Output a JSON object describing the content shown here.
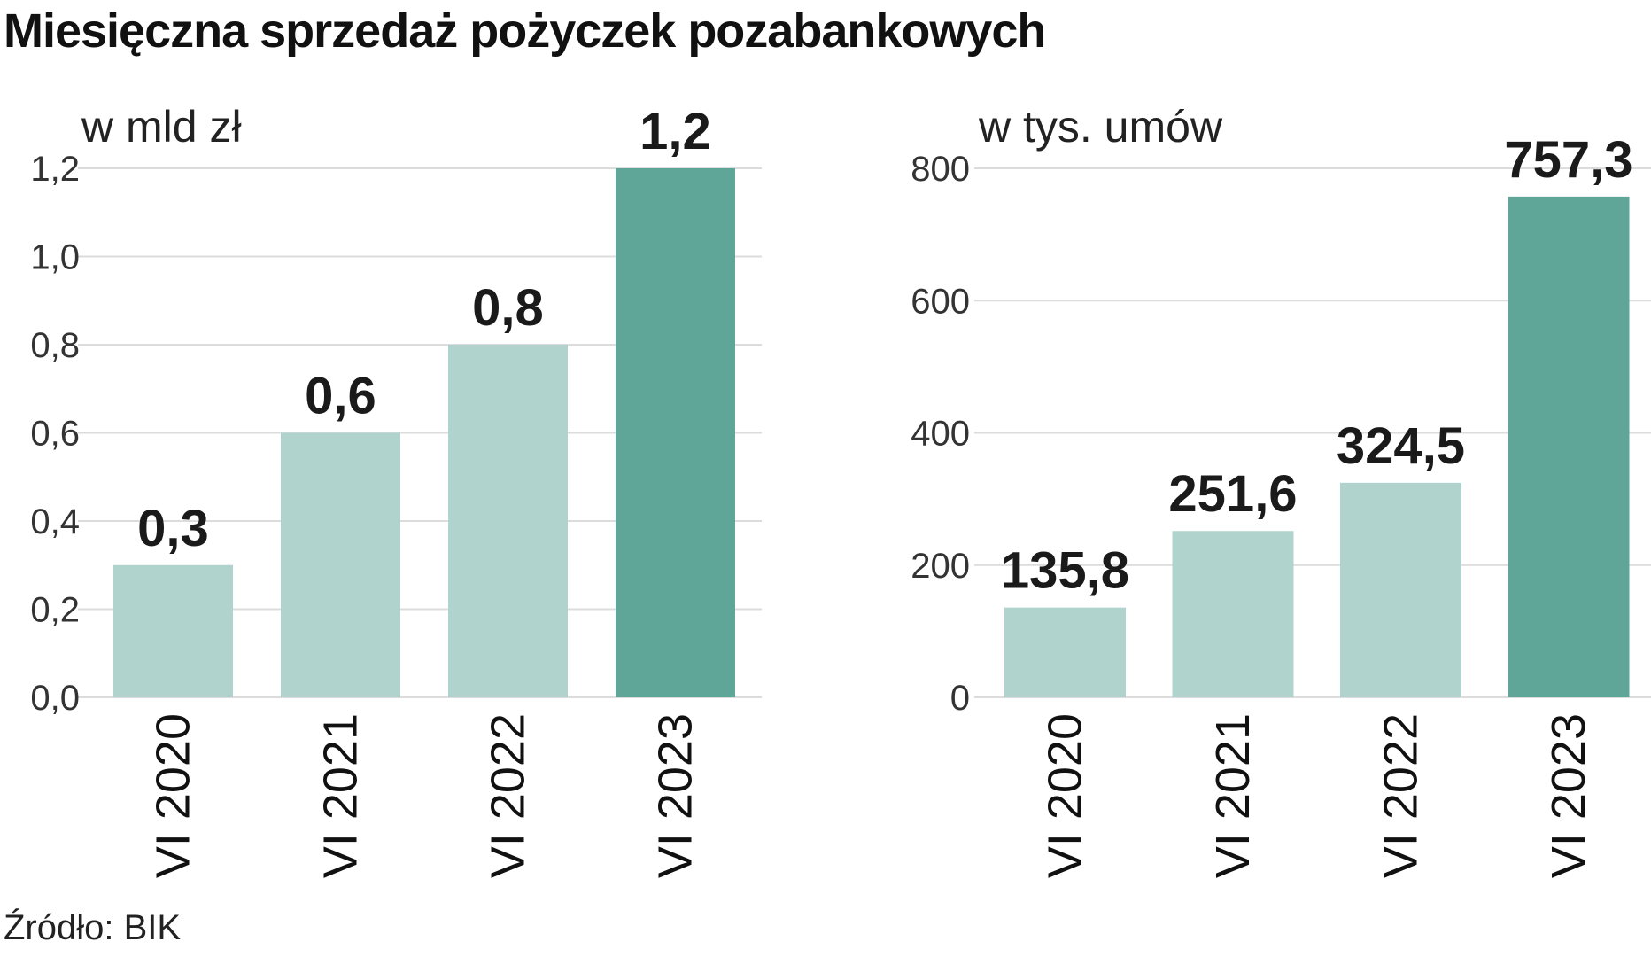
{
  "title": "Miesięczna sprzedaż pożyczek pozabankowych",
  "source": "Źródło: BIK",
  "colors": {
    "bar": "#b0d3cd",
    "highlight": "#5fa598",
    "grid": "#dcdcdc"
  },
  "chart_data": [
    {
      "type": "bar",
      "unit_label": "w mld zł",
      "categories": [
        "VI 2020",
        "VI 2021",
        "VI 2022",
        "VI 2023"
      ],
      "values": [
        0.3,
        0.6,
        0.8,
        1.2
      ],
      "data_labels": [
        "0,3",
        "0,6",
        "0,8",
        "1,2"
      ],
      "ylim": [
        0,
        1.2
      ],
      "yticks": [
        0,
        0.2,
        0.4,
        0.6,
        0.8,
        1.0,
        1.2
      ],
      "ytick_labels": [
        "0,0",
        "0,2",
        "0,4",
        "0,6",
        "0,8",
        "1,0",
        "1,2"
      ],
      "highlight_index": 3,
      "grid": true
    },
    {
      "type": "bar",
      "unit_label": "w tys. umów",
      "categories": [
        "VI 2020",
        "VI 2021",
        "VI 2022",
        "VI 2023"
      ],
      "values": [
        135.8,
        251.6,
        324.5,
        757.3
      ],
      "data_labels": [
        "135,8",
        "251,6",
        "324,5",
        "757,3"
      ],
      "ylim": [
        0,
        800
      ],
      "yticks": [
        0,
        200,
        400,
        600,
        800
      ],
      "ytick_labels": [
        "0",
        "200",
        "400",
        "600",
        "800"
      ],
      "highlight_index": 3,
      "grid": true
    }
  ]
}
